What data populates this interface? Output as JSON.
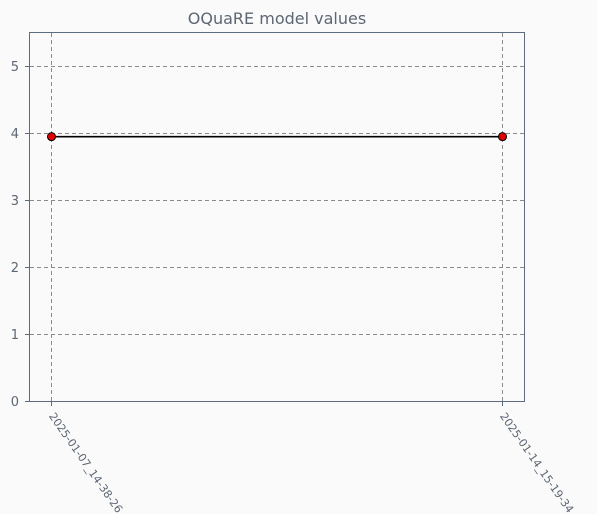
{
  "chart_data": {
    "type": "line",
    "title": "OQuaRE model values",
    "xlabel": "",
    "ylabel": "",
    "categories": [
      "2025-01-07_14-38-26",
      "2025-01-14_15-19-34"
    ],
    "series": [
      {
        "values": [
          3.94,
          3.94
        ],
        "color": "#000000",
        "marker_color": "#e00000"
      }
    ],
    "ylim": [
      0,
      5.5
    ],
    "yticks": [
      "0",
      "1",
      "2",
      "3",
      "4",
      "5"
    ],
    "grid": true,
    "legend": "none",
    "colors": {
      "background": "#fafafa",
      "axes_frame": "#5d6b80",
      "grid": "#8a8a8a",
      "text": "#5d6673"
    }
  }
}
